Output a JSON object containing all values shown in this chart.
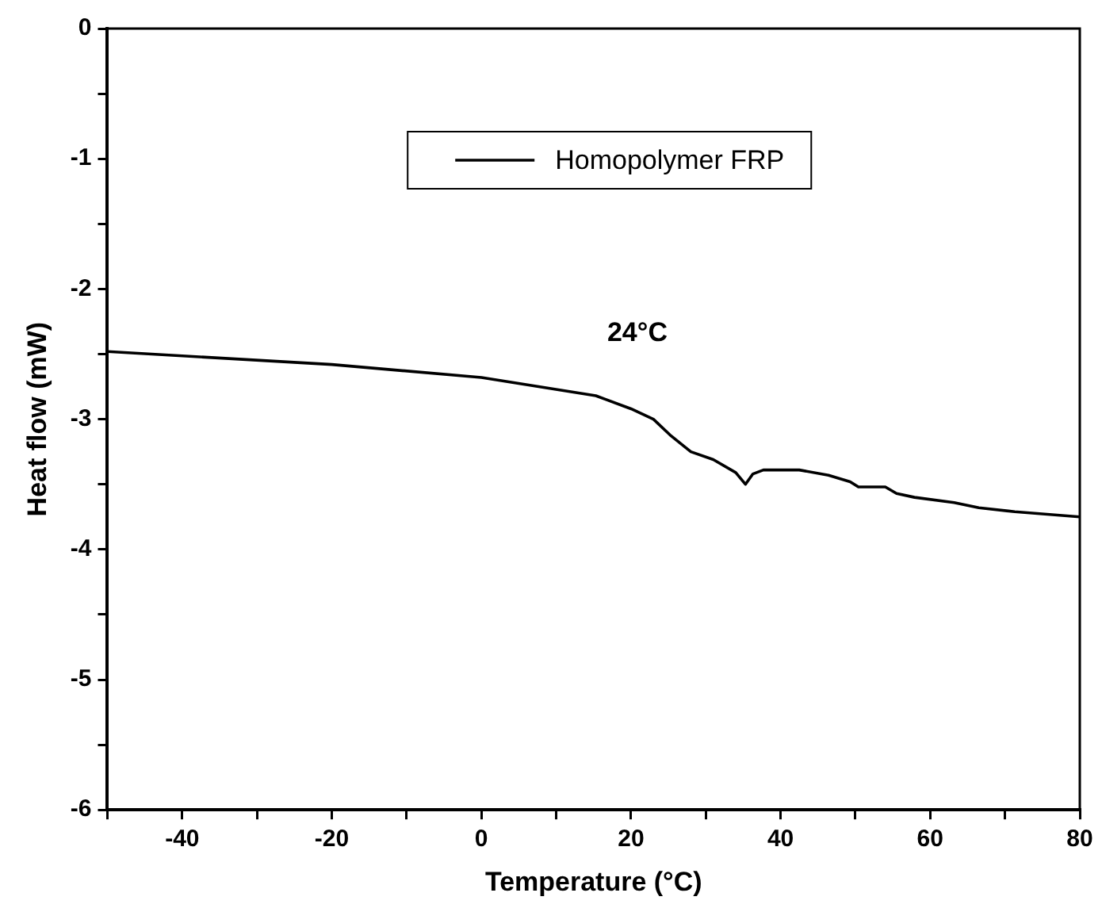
{
  "chart_data": {
    "type": "line",
    "xlabel": "Temperature (°C)",
    "ylabel": "Heat flow (mW)",
    "x": [
      -50,
      -20,
      0,
      15.3,
      20,
      23,
      25.2,
      28,
      31,
      34,
      35.3,
      36.3,
      37.7,
      42.5,
      46.4,
      49.3,
      50.4,
      54,
      55.5,
      57.9,
      63.2,
      66.5,
      71.3,
      80
    ],
    "series": [
      {
        "name": "Homopolymer FRP",
        "color": "#000000",
        "values": [
          -2.48,
          -2.58,
          -2.68,
          -2.82,
          -2.92,
          -3.0,
          -3.12,
          -3.25,
          -3.31,
          -3.41,
          -3.5,
          -3.42,
          -3.39,
          -3.39,
          -3.43,
          -3.48,
          -3.52,
          -3.52,
          -3.57,
          -3.6,
          -3.64,
          -3.68,
          -3.71,
          -3.75
        ]
      }
    ],
    "xlim": [
      -50,
      80
    ],
    "xticks": [
      {
        "value": -50,
        "label": null
      },
      -40,
      {
        "value": -30,
        "label": null
      },
      -20,
      {
        "value": -10,
        "label": null
      },
      0,
      {
        "value": 10,
        "label": null
      },
      20,
      {
        "value": 30,
        "label": null
      },
      40,
      {
        "value": 50,
        "label": null
      },
      60,
      {
        "value": 70,
        "label": null
      },
      80
    ],
    "ylim": [
      -6,
      0
    ],
    "yticks": [
      -6,
      {
        "value": -5.5,
        "label": null
      },
      -5,
      {
        "value": -4.5,
        "label": null
      },
      -4,
      {
        "value": -3.5,
        "label": null
      },
      -3,
      {
        "value": -2.5,
        "label": null
      },
      -2,
      {
        "value": -1.5,
        "label": null
      },
      -1,
      {
        "value": -0.5,
        "label": null
      },
      0
    ],
    "annotations": [
      "24°C"
    ],
    "grid": false,
    "legend": "top",
    "marker": "none",
    "line_style": "solid"
  }
}
